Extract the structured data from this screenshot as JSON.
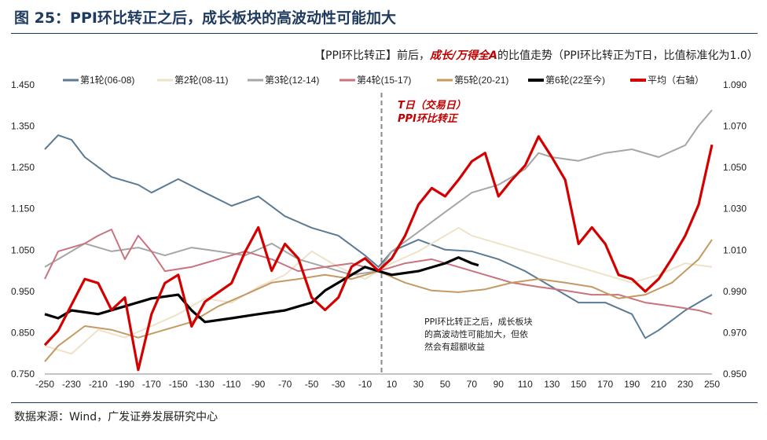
{
  "figure_title": "图 25：PPI环比转正之后，成长板块的高波动性可能加大",
  "source": "数据来源：Wind，广发证券发展研究中心",
  "chart_data": {
    "type": "line",
    "title_parts": [
      "【PPI环比转正】前后，",
      "成长/万得全A",
      "的比值走势（PPI环比转正为T日，比值标准化为1.0）"
    ],
    "xlabel": "",
    "ylabel": "",
    "xlim": [
      -250,
      250
    ],
    "ylim": [
      0.75,
      1.45
    ],
    "y2lim": [
      0.95,
      1.09
    ],
    "x_ticks": [
      -250,
      -230,
      -210,
      -190,
      -170,
      -150,
      -130,
      -110,
      -90,
      -70,
      -50,
      -30,
      -10,
      10,
      30,
      50,
      70,
      90,
      110,
      130,
      150,
      170,
      190,
      210,
      230,
      250
    ],
    "y_ticks": [
      "0.750",
      "0.850",
      "0.950",
      "1.050",
      "1.150",
      "1.250",
      "1.350",
      "1.450"
    ],
    "y2_ticks": [
      "0.950",
      "0.970",
      "0.990",
      "1.010",
      "1.030",
      "1.050",
      "1.070",
      "1.090"
    ],
    "grid": false,
    "legend_position": "top",
    "vline_x": 0,
    "annotations": [
      {
        "lines": [
          "T日（交易日）",
          "PPI环比转正"
        ],
        "color": "#c00000"
      },
      {
        "lines": [
          "PPI环比转正之后，成长板块",
          "的高波动性可能加大，但依",
          "然会有超额收益"
        ],
        "color": "#222222"
      }
    ],
    "series": [
      {
        "name": "第1轮(06-08)",
        "color": "#5b7a94",
        "axis": "left",
        "x": [
          -250,
          -240,
          -230,
          -220,
          -200,
          -180,
          -170,
          -150,
          -130,
          -110,
          -90,
          -70,
          -50,
          -30,
          -10,
          0,
          10,
          30,
          50,
          70,
          90,
          110,
          130,
          150,
          170,
          190,
          200,
          210,
          230,
          250
        ],
        "y": [
          1.294,
          1.328,
          1.317,
          1.275,
          1.227,
          1.208,
          1.189,
          1.222,
          1.189,
          1.157,
          1.18,
          1.132,
          1.104,
          1.085,
          1.037,
          1.009,
          1.047,
          1.075,
          1.051,
          1.047,
          1.028,
          0.999,
          0.961,
          0.923,
          0.923,
          0.895,
          0.837,
          0.856,
          0.904,
          0.942
        ]
      },
      {
        "name": "第2轮(08-11)",
        "color": "#eee2c8",
        "axis": "left",
        "x": [
          -250,
          -230,
          -210,
          -190,
          -170,
          -150,
          -130,
          -110,
          -90,
          -70,
          -50,
          -30,
          -10,
          0,
          10,
          30,
          50,
          60,
          70,
          90,
          110,
          130,
          150,
          170,
          190,
          210,
          230,
          250
        ],
        "y": [
          0.818,
          0.799,
          0.857,
          0.838,
          0.866,
          0.895,
          0.933,
          0.923,
          0.961,
          0.99,
          1.047,
          1.009,
          0.98,
          0.999,
          1.018,
          1.047,
          1.085,
          1.104,
          1.085,
          1.066,
          1.047,
          1.028,
          1.009,
          0.99,
          0.971,
          0.99,
          1.018,
          1.009
        ]
      },
      {
        "name": "第3轮(12-14)",
        "color": "#a6a6a6",
        "axis": "left",
        "x": [
          -250,
          -240,
          -220,
          -200,
          -180,
          -160,
          -140,
          -120,
          -100,
          -80,
          -60,
          -40,
          -20,
          0,
          10,
          30,
          50,
          70,
          90,
          110,
          120,
          130,
          150,
          170,
          190,
          210,
          230,
          240,
          250
        ],
        "y": [
          1.009,
          1.028,
          1.066,
          1.047,
          1.056,
          1.037,
          1.056,
          1.047,
          1.037,
          1.066,
          1.028,
          1.009,
          0.99,
          0.999,
          1.047,
          1.094,
          1.142,
          1.189,
          1.208,
          1.246,
          1.285,
          1.275,
          1.266,
          1.285,
          1.294,
          1.275,
          1.304,
          1.351,
          1.389
        ]
      },
      {
        "name": "第4轮(15-17)",
        "color": "#c9737e",
        "axis": "left",
        "x": [
          -250,
          -240,
          -220,
          -210,
          -200,
          -190,
          -180,
          -170,
          -160,
          -140,
          -120,
          -100,
          -80,
          -60,
          -40,
          -20,
          0,
          20,
          40,
          60,
          80,
          100,
          120,
          140,
          160,
          180,
          200,
          220,
          240,
          250
        ],
        "y": [
          0.98,
          1.047,
          1.066,
          1.085,
          1.1,
          1.028,
          1.085,
          1.047,
          0.999,
          1.009,
          1.028,
          1.047,
          1.028,
          0.999,
          1.009,
          1.018,
          0.999,
          1.018,
          1.028,
          1.009,
          0.99,
          0.971,
          0.961,
          0.952,
          0.942,
          0.942,
          0.923,
          0.914,
          0.904,
          0.895
        ]
      },
      {
        "name": "第5轮(20-21)",
        "color": "#c49a62",
        "axis": "left",
        "x": [
          -250,
          -240,
          -220,
          -200,
          -180,
          -160,
          -140,
          -120,
          -100,
          -80,
          -60,
          -40,
          -20,
          0,
          20,
          40,
          60,
          80,
          100,
          120,
          140,
          160,
          180,
          200,
          220,
          240,
          250
        ],
        "y": [
          0.78,
          0.818,
          0.866,
          0.857,
          0.838,
          0.857,
          0.876,
          0.914,
          0.942,
          0.971,
          0.98,
          0.99,
          0.98,
          0.999,
          0.971,
          0.952,
          0.948,
          0.955,
          0.971,
          0.98,
          0.971,
          0.961,
          0.933,
          0.942,
          0.971,
          1.028,
          1.075
        ]
      },
      {
        "name": "第6轮(22至今)",
        "color": "#000000",
        "axis": "left",
        "x": [
          -250,
          -240,
          -230,
          -210,
          -190,
          -170,
          -150,
          -140,
          -130,
          -110,
          -90,
          -70,
          -50,
          -40,
          -30,
          -20,
          -10,
          0,
          10,
          30,
          50,
          60,
          70,
          75
        ],
        "y": [
          0.895,
          0.885,
          0.904,
          0.895,
          0.914,
          0.933,
          0.942,
          0.904,
          0.876,
          0.885,
          0.895,
          0.904,
          0.923,
          0.952,
          0.971,
          0.99,
          1.009,
          0.999,
          0.99,
          0.999,
          1.018,
          1.032,
          1.018,
          1.013
        ]
      },
      {
        "name": "平均（右轴）",
        "color": "#d40000",
        "axis": "right",
        "x": [
          -250,
          -240,
          -220,
          -210,
          -200,
          -190,
          -180,
          -170,
          -160,
          -150,
          -140,
          -130,
          -110,
          -100,
          -90,
          -80,
          -70,
          -60,
          -50,
          -40,
          -30,
          -20,
          -10,
          0,
          10,
          20,
          30,
          40,
          50,
          60,
          70,
          80,
          90,
          100,
          110,
          120,
          130,
          140,
          150,
          160,
          170,
          180,
          190,
          200,
          210,
          220,
          230,
          240,
          250
        ],
        "y": [
          0.964,
          0.971,
          0.996,
          0.994,
          0.981,
          0.987,
          0.952,
          0.979,
          0.994,
          0.998,
          0.973,
          0.985,
          0.994,
          1.009,
          1.021,
          1.0,
          1.013,
          1.006,
          0.987,
          0.981,
          0.987,
          1.002,
          1.006,
          1.0,
          1.006,
          1.017,
          1.032,
          1.04,
          1.036,
          1.044,
          1.053,
          1.057,
          1.036,
          1.044,
          1.051,
          1.065,
          1.055,
          1.044,
          1.013,
          1.021,
          1.013,
          0.998,
          0.996,
          0.99,
          0.996,
          1.006,
          1.017,
          1.032,
          1.061
        ]
      }
    ]
  }
}
